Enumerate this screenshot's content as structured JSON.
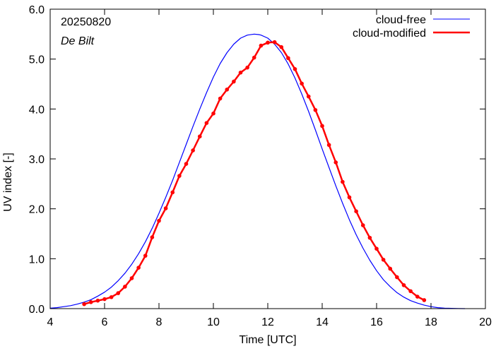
{
  "chart_data": {
    "type": "line",
    "xlabel": "Time  [UTC]",
    "ylabel": "UV index  [-]",
    "xlim": [
      4,
      20
    ],
    "ylim": [
      0,
      6
    ],
    "xticks": [
      4,
      6,
      8,
      10,
      12,
      14,
      16,
      18,
      20
    ],
    "xtick_labels": [
      "4",
      "6",
      "8",
      "10",
      "12",
      "14",
      "16",
      "18",
      "20"
    ],
    "yticks": [
      0,
      1,
      2,
      3,
      4,
      5,
      6
    ],
    "ytick_labels": [
      "0.0",
      "1.0",
      "2.0",
      "3.0",
      "4.0",
      "5.0",
      "6.0"
    ],
    "grid": false,
    "legend_position": "top-right",
    "annotations": {
      "date": "20250820",
      "station": "De Bilt"
    },
    "colors": {
      "cloud_free": "#0000ff",
      "cloud_modified": "#ff0000"
    },
    "series": [
      {
        "name": "cloud-free",
        "style": "line",
        "x": [
          4.0,
          4.25,
          4.5,
          4.75,
          5.0,
          5.25,
          5.5,
          5.75,
          6.0,
          6.25,
          6.5,
          6.75,
          7.0,
          7.25,
          7.5,
          7.75,
          8.0,
          8.25,
          8.5,
          8.75,
          9.0,
          9.25,
          9.5,
          9.75,
          10.0,
          10.25,
          10.5,
          10.75,
          11.0,
          11.25,
          11.5,
          11.67,
          11.75,
          12.0,
          12.25,
          12.5,
          12.75,
          13.0,
          13.25,
          13.5,
          13.75,
          14.0,
          14.25,
          14.5,
          14.75,
          15.0,
          15.25,
          15.5,
          15.75,
          16.0,
          16.25,
          16.5,
          16.75,
          17.0,
          17.25,
          17.5,
          17.75,
          18.0,
          18.25,
          18.5,
          18.75,
          19.0,
          19.25
        ],
        "y": [
          0.01,
          0.02,
          0.04,
          0.06,
          0.09,
          0.13,
          0.18,
          0.25,
          0.33,
          0.43,
          0.56,
          0.71,
          0.89,
          1.1,
          1.34,
          1.61,
          1.91,
          2.23,
          2.57,
          2.93,
          3.29,
          3.65,
          4.0,
          4.33,
          4.64,
          4.91,
          5.13,
          5.3,
          5.42,
          5.48,
          5.5,
          5.49,
          5.48,
          5.42,
          5.3,
          5.13,
          4.9,
          4.62,
          4.3,
          3.95,
          3.58,
          3.2,
          2.83,
          2.46,
          2.11,
          1.78,
          1.48,
          1.21,
          0.97,
          0.76,
          0.58,
          0.44,
          0.32,
          0.23,
          0.16,
          0.11,
          0.07,
          0.04,
          0.02,
          0.01,
          0.005,
          0.002,
          0.0
        ]
      },
      {
        "name": "cloud-modified",
        "style": "line+markers",
        "x": [
          5.25,
          5.5,
          5.75,
          6.0,
          6.25,
          6.5,
          6.75,
          7.0,
          7.25,
          7.5,
          7.75,
          8.0,
          8.25,
          8.5,
          8.75,
          9.0,
          9.25,
          9.5,
          9.75,
          10.0,
          10.25,
          10.5,
          10.75,
          11.0,
          11.25,
          11.5,
          11.75,
          12.0,
          12.25,
          12.5,
          12.75,
          13.0,
          13.25,
          13.5,
          13.75,
          14.0,
          14.25,
          14.5,
          14.75,
          15.0,
          15.25,
          15.5,
          15.75,
          16.0,
          16.25,
          16.5,
          16.75,
          17.0,
          17.25,
          17.5,
          17.75
        ],
        "y": [
          0.09,
          0.13,
          0.16,
          0.19,
          0.23,
          0.31,
          0.44,
          0.61,
          0.82,
          1.06,
          1.43,
          1.76,
          2.01,
          2.33,
          2.66,
          2.9,
          3.17,
          3.45,
          3.72,
          3.91,
          4.21,
          4.39,
          4.55,
          4.73,
          4.83,
          5.03,
          5.27,
          5.33,
          5.34,
          5.24,
          5.02,
          4.8,
          4.51,
          4.25,
          3.98,
          3.66,
          3.28,
          2.93,
          2.54,
          2.23,
          1.95,
          1.67,
          1.42,
          1.2,
          0.98,
          0.8,
          0.63,
          0.47,
          0.35,
          0.24,
          0.17
        ]
      }
    ]
  }
}
